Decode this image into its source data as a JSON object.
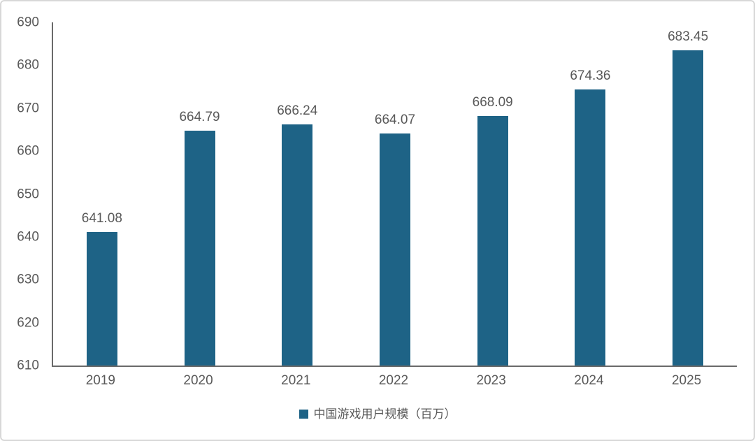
{
  "chart_data": {
    "type": "bar",
    "categories": [
      "2019",
      "2020",
      "2021",
      "2022",
      "2023",
      "2024",
      "2025"
    ],
    "values": [
      641.08,
      664.79,
      666.24,
      664.07,
      668.09,
      674.36,
      683.45
    ],
    "value_labels": [
      "641.08",
      "664.79",
      "666.24",
      "664.07",
      "668.09",
      "674.36",
      "683.45"
    ],
    "yticks": [
      610,
      620,
      630,
      640,
      650,
      660,
      670,
      680,
      690
    ],
    "ylim": [
      610,
      690
    ],
    "grid": false,
    "title": "",
    "xlabel": "",
    "ylabel": "",
    "legend_entries": [
      "中国游戏用户规模（百万）"
    ],
    "legend_position": "bottom-center",
    "colors": {
      "bar": "#1E6386",
      "text": "#595959",
      "axis": "#6A6A6A",
      "card_border": "#D8D8D8",
      "background": "#FFFFFF"
    }
  },
  "legend": {
    "label": "中国游戏用户规模（百万）"
  }
}
